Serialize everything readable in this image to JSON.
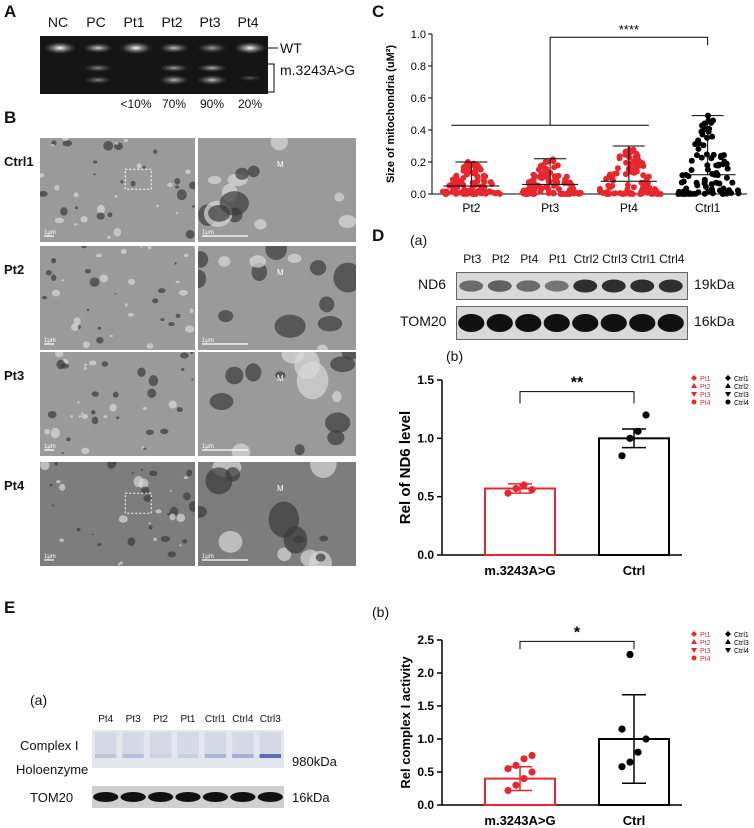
{
  "panel_a": {
    "label": "A",
    "lanes": [
      "NC",
      "PC",
      "Pt1",
      "Pt2",
      "Pt3",
      "Pt4"
    ],
    "band_wt": "WT",
    "band_mut": "m.3243A>G",
    "percentages": [
      "<10%",
      "70%",
      "90%",
      "20%"
    ]
  },
  "panel_b": {
    "label": "B",
    "rows": [
      "Ctrl1",
      "Pt2",
      "Pt3",
      "Pt4"
    ],
    "scale_bar": "1μm",
    "marker": "M"
  },
  "panel_c": {
    "label": "C",
    "significance": "****"
  },
  "panel_d": {
    "label": "D",
    "sub_a": "(a)",
    "sub_b": "(b)",
    "lanes": [
      "Pt3",
      "Pt2",
      "Pt4",
      "Pt1",
      "Ctrl2",
      "Ctrl3",
      "Ctrl1",
      "Ctrl4"
    ],
    "blot_rows": [
      {
        "name": "ND6",
        "size": "19kDa"
      },
      {
        "name": "TOM20",
        "size": "16kDa"
      }
    ],
    "significance": "**"
  },
  "panel_e": {
    "label": "E",
    "sub_a": "(a)",
    "sub_b": "(b)",
    "lanes": [
      "Pt4",
      "Pt3",
      "Pt2",
      "Pt1",
      "Ctrl1",
      "Ctrl4",
      "Ctrl3"
    ],
    "row1_name_line1": "Complex I",
    "row1_name_line2": "Holoenzyme",
    "row1_size": "980kDa",
    "row2_name": "TOM20",
    "row2_size": "16kDa",
    "significance": "*"
  },
  "legend": {
    "pt": [
      "Pt1",
      "Pt2",
      "Pt3",
      "Pt4"
    ],
    "ctrl": [
      "Ctrl1",
      "Ctrl2",
      "Ctrl3",
      "Ctrl4"
    ],
    "pt_e": [
      "Pt1",
      "Pt2",
      "Pt3",
      "Pt4"
    ],
    "ctrl_e": [
      "Ctrl1",
      "Ctrl3",
      "Ctrl4"
    ]
  },
  "colors": {
    "patient": "#e8262d",
    "control": "#000000"
  },
  "chart_data": [
    {
      "type": "scatter",
      "panel": "C",
      "categories": [
        "Pt2",
        "Pt3",
        "Pt4",
        "Ctrl1"
      ],
      "ylabel": "Size of mitochondria (uM²)",
      "ylim": [
        0,
        1.0
      ],
      "yticks": [
        "0.0",
        "0.2",
        "0.4",
        "0.6",
        "0.8",
        "1.0"
      ],
      "means": [
        0.05,
        0.06,
        0.08,
        0.12
      ],
      "maxima": [
        0.2,
        0.22,
        0.3,
        0.49
      ],
      "point_colors": [
        "#e8262d",
        "#e8262d",
        "#e8262d",
        "#000000"
      ]
    },
    {
      "type": "bar",
      "panel": "D(b)",
      "categories": [
        "m.3243A>G",
        "Ctrl"
      ],
      "values": [
        0.57,
        1.0
      ],
      "errors": [
        0.04,
        0.08
      ],
      "points": [
        [
          0.53,
          0.57,
          0.6,
          0.56
        ],
        [
          0.85,
          1.0,
          1.06,
          1.2
        ]
      ],
      "ylabel": "Rel of ND6 level",
      "ylim": [
        0,
        1.5
      ],
      "yticks": [
        "0.0",
        "0.5",
        "1.0",
        "1.5"
      ]
    },
    {
      "type": "bar",
      "panel": "E(b)",
      "categories": [
        "m.3243A>G",
        "Ctrl"
      ],
      "values": [
        0.4,
        1.0
      ],
      "errors": [
        0.18,
        0.67
      ],
      "points": [
        [
          0.22,
          0.3,
          0.4,
          0.5,
          0.55,
          0.6,
          0.7,
          0.75
        ],
        [
          0.58,
          0.65,
          0.8,
          1.0,
          1.15,
          2.28
        ]
      ],
      "ylabel": "Rel complex I activity",
      "ylim": [
        0,
        2.5
      ],
      "yticks": [
        "0.0",
        "0.5",
        "1.0",
        "1.5",
        "2.0",
        "2.5"
      ]
    }
  ]
}
